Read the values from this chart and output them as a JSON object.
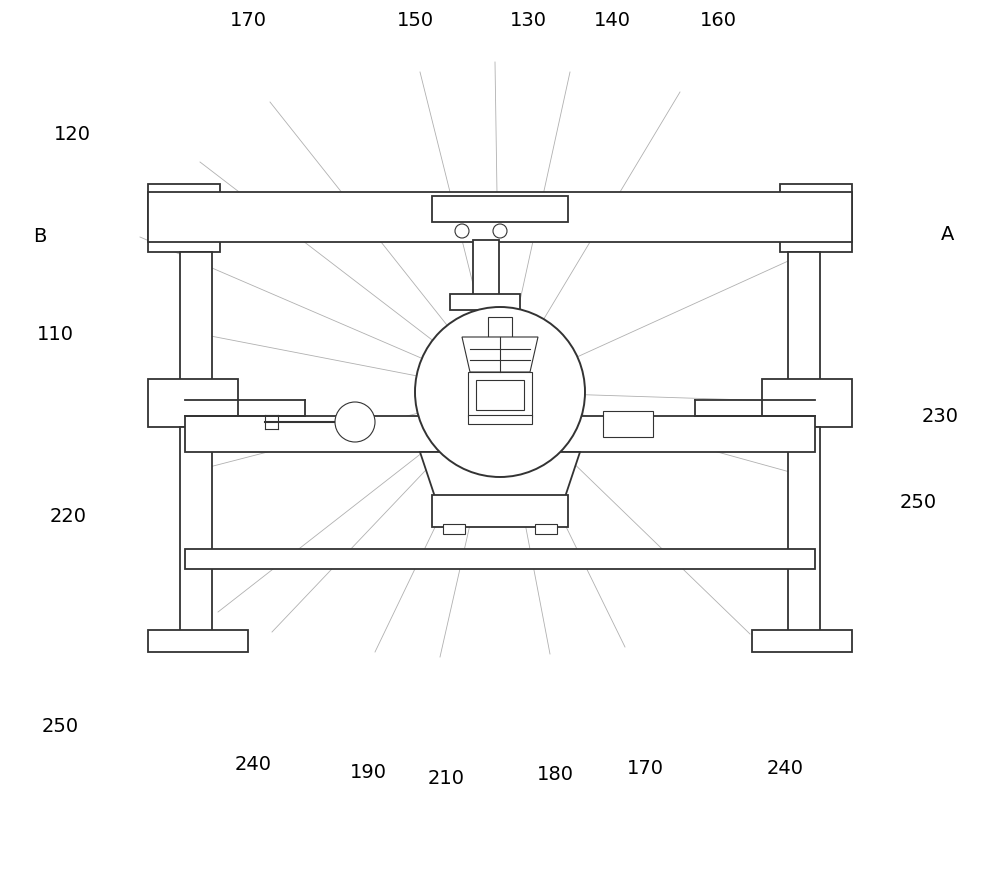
{
  "bg_color": "#ffffff",
  "line_color": "#333333",
  "annotation_line_color": "#b0b0b0",
  "figsize": [
    10.0,
    8.82
  ],
  "dpi": 100
}
